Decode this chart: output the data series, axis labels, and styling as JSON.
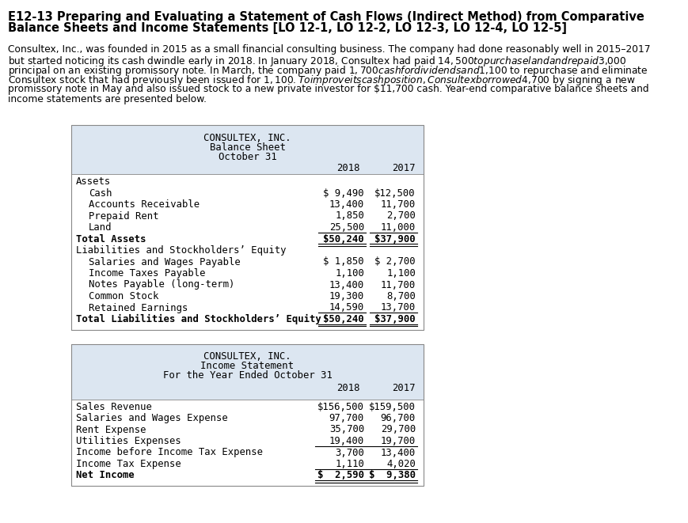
{
  "title_line1": "E12-13 Preparing and Evaluating a Statement of Cash Flows (Indirect Method) from Comparative",
  "title_line2": "Balance Sheets and Income Statements [LO 12-1, LO 12-2, LO 12-3, LO 12-4, LO 12-5]",
  "body_lines": [
    "Consultex, Inc., was founded in 2015 as a small financial consulting business. The company had done reasonably well in 2015–2017",
    "but started noticing its cash dwindle early in 2018. In January 2018, Consultex had paid $14,500 to purchase land and repaid $3,000",
    "principal on an existing promissory note. In March, the company paid $1,700 cash for dividends and $1,100 to repurchase and eliminate",
    "Consultex stock that had previously been issued for $1,100. To improve its cash position, Consultex borrowed $4,700 by signing a new",
    "promissory note in May and also issued stock to a new private investor for $11,700 cash. Year-end comparative balance sheets and",
    "income statements are presented below."
  ],
  "bs_header1": "CONSULTEX, INC.",
  "bs_header2": "Balance Sheet",
  "bs_header3": "October 31",
  "bs_col1": "2018",
  "bs_col2": "2017",
  "bs_rows": [
    {
      "label": "Assets",
      "indent": 0,
      "val2018": "",
      "val2017": "",
      "bold": false
    },
    {
      "label": "Cash",
      "indent": 1,
      "val2018": "$ 9,490",
      "val2017": "$12,500",
      "bold": false
    },
    {
      "label": "Accounts Receivable",
      "indent": 1,
      "val2018": "13,400",
      "val2017": "11,700",
      "bold": false
    },
    {
      "label": "Prepaid Rent",
      "indent": 1,
      "val2018": "1,850",
      "val2017": "2,700",
      "bold": false
    },
    {
      "label": "Land",
      "indent": 1,
      "val2018": "25,500",
      "val2017": "11,000",
      "bold": false,
      "underline": true
    },
    {
      "label": "Total Assets",
      "indent": 0,
      "val2018": "$50,240",
      "val2017": "$37,900",
      "bold": true,
      "double_underline": true
    },
    {
      "label": "Liabilities and Stockholders’ Equity",
      "indent": 0,
      "val2018": "",
      "val2017": "",
      "bold": false
    },
    {
      "label": "Salaries and Wages Payable",
      "indent": 1,
      "val2018": "$ 1,850",
      "val2017": "$ 2,700",
      "bold": false
    },
    {
      "label": "Income Taxes Payable",
      "indent": 1,
      "val2018": "1,100",
      "val2017": "1,100",
      "bold": false
    },
    {
      "label": "Notes Payable (long-term)",
      "indent": 1,
      "val2018": "13,400",
      "val2017": "11,700",
      "bold": false
    },
    {
      "label": "Common Stock",
      "indent": 1,
      "val2018": "19,300",
      "val2017": "8,700",
      "bold": false
    },
    {
      "label": "Retained Earnings",
      "indent": 1,
      "val2018": "14,590",
      "val2017": "13,700",
      "bold": false,
      "underline": true
    },
    {
      "label": "Total Liabilities and Stockholders’ Equity",
      "indent": 0,
      "val2018": "$50,240",
      "val2017": "$37,900",
      "bold": true,
      "double_underline": true
    }
  ],
  "is_header1": "CONSULTEX, INC.",
  "is_header2": "Income Statement",
  "is_header3": "For the Year Ended October 31",
  "is_col1": "2018",
  "is_col2": "2017",
  "is_rows": [
    {
      "label": "Sales Revenue",
      "indent": 0,
      "val2018": "$156,500",
      "val2017": "$159,500",
      "bold": false
    },
    {
      "label": "Salaries and Wages Expense",
      "indent": 0,
      "val2018": "97,700",
      "val2017": "96,700",
      "bold": false
    },
    {
      "label": "Rent Expense",
      "indent": 0,
      "val2018": "35,700",
      "val2017": "29,700",
      "bold": false
    },
    {
      "label": "Utilities Expenses",
      "indent": 0,
      "val2018": "19,400",
      "val2017": "19,700",
      "bold": false,
      "underline": true
    },
    {
      "label": "Income before Income Tax Expense",
      "indent": 0,
      "val2018": "3,700",
      "val2017": "13,400",
      "bold": false
    },
    {
      "label": "Income Tax Expense",
      "indent": 0,
      "val2018": "1,110",
      "val2017": "4,020",
      "bold": false,
      "underline": true
    },
    {
      "label": "Net Income",
      "indent": 0,
      "val2018": "$  2,590",
      "val2017": "$  9,380",
      "bold": true,
      "double_underline": true
    }
  ],
  "bg_color": "#ffffff",
  "table_header_bg": "#dce6f1",
  "table_body_bg": "#ffffff"
}
